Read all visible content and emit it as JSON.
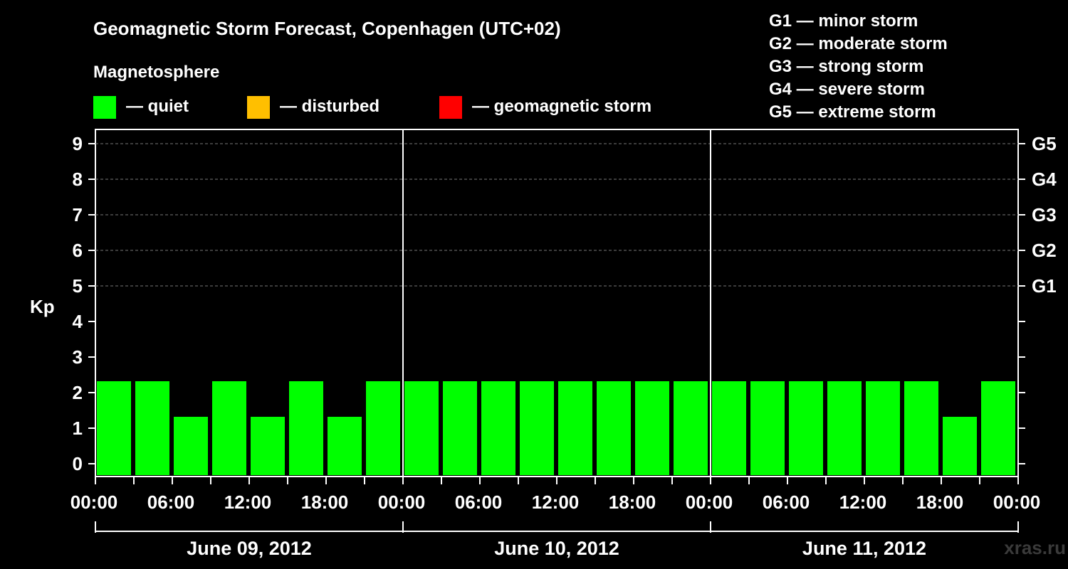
{
  "title": "Geomagnetic Storm Forecast, Copenhagen (UTC+02)",
  "legend": {
    "heading": "Magnetosphere",
    "items": [
      {
        "label": "— quiet",
        "color": "#00ff00"
      },
      {
        "label": "— disturbed",
        "color": "#ffbf00"
      },
      {
        "label": "— geomagnetic storm",
        "color": "#ff0000"
      }
    ]
  },
  "storm_scale": [
    "G1 — minor storm",
    "G2 — moderate storm",
    "G3 — strong storm",
    "G4 — severe storm",
    "G5 — extreme storm"
  ],
  "watermark": "xras.ru",
  "chart_data": {
    "type": "bar",
    "ylabel": "Kp",
    "ylim": [
      0,
      9
    ],
    "y_ticks": [
      "0",
      "1",
      "2",
      "3",
      "4",
      "5",
      "6",
      "7",
      "8",
      "9"
    ],
    "right_axis_ticks": [
      {
        "kp": 5,
        "label": "G1"
      },
      {
        "kp": 6,
        "label": "G2"
      },
      {
        "kp": 7,
        "label": "G3"
      },
      {
        "kp": 8,
        "label": "G4"
      },
      {
        "kp": 9,
        "label": "G5"
      }
    ],
    "x_ticks": [
      "00:00",
      "06:00",
      "12:00",
      "18:00",
      "00:00",
      "06:00",
      "12:00",
      "18:00",
      "00:00",
      "06:00",
      "12:00",
      "18:00",
      "00:00"
    ],
    "days": [
      "June 09, 2012",
      "June 10, 2012",
      "June 11, 2012"
    ],
    "hours_per_bar": 3,
    "values": [
      2,
      2,
      1,
      2,
      1,
      2,
      1,
      2,
      2,
      2,
      2,
      2,
      2,
      2,
      2,
      2,
      2,
      2,
      2,
      2,
      2,
      2,
      1,
      2
    ],
    "bar_color": "#00ff00",
    "grid": "dashed horizontal at Kp 5-9"
  }
}
